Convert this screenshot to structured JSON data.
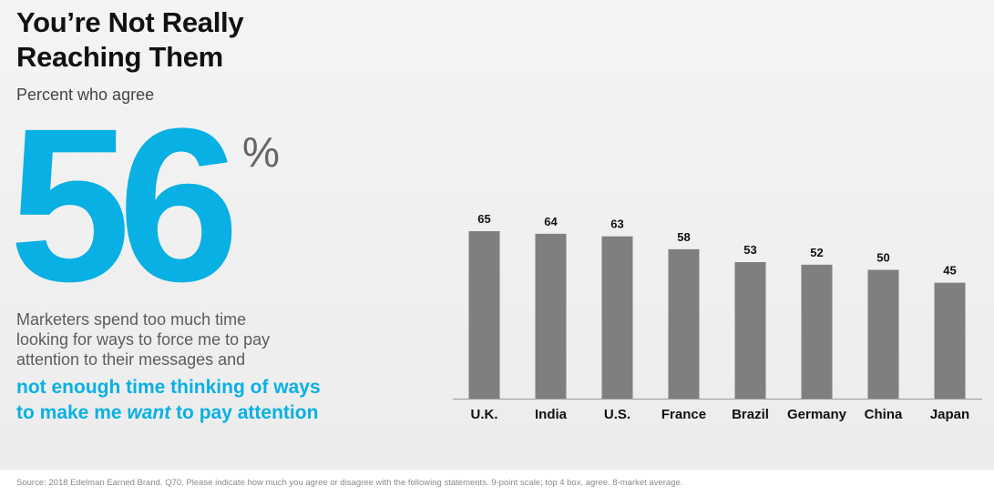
{
  "heading": {
    "title_line1": "You’re Not Really",
    "title_line2": "Reaching Them",
    "subtitle": "Percent who agree"
  },
  "stat": {
    "value": "56",
    "unit": "%"
  },
  "statement": {
    "line1": "Marketers spend too much time",
    "line2": "looking for ways to force me to pay",
    "line3": "attention to their messages and",
    "highlight_line1": "not enough time thinking of ways",
    "highlight_pre": "to make me ",
    "highlight_emphasis": "want",
    "highlight_post": " to pay attention"
  },
  "footer": {
    "source": "Source: 2018 Edelman Earned Brand. Q70. Please indicate how much you agree or disagree with the following statements. 9-point scale; top 4 box, agree. 8-market average."
  },
  "colors": {
    "accent": "#08b0e4",
    "bar": "#7f7f7f",
    "axis": "#9a9a9a"
  },
  "chart_data": {
    "type": "bar",
    "title": "",
    "xlabel": "",
    "ylabel": "",
    "categories": [
      "U.K.",
      "India",
      "U.S.",
      "France",
      "Brazil",
      "Germany",
      "China",
      "Japan"
    ],
    "values": [
      65,
      64,
      63,
      58,
      53,
      52,
      50,
      45
    ],
    "ylim": [
      0,
      100
    ],
    "grid": false,
    "data_labels": true
  }
}
